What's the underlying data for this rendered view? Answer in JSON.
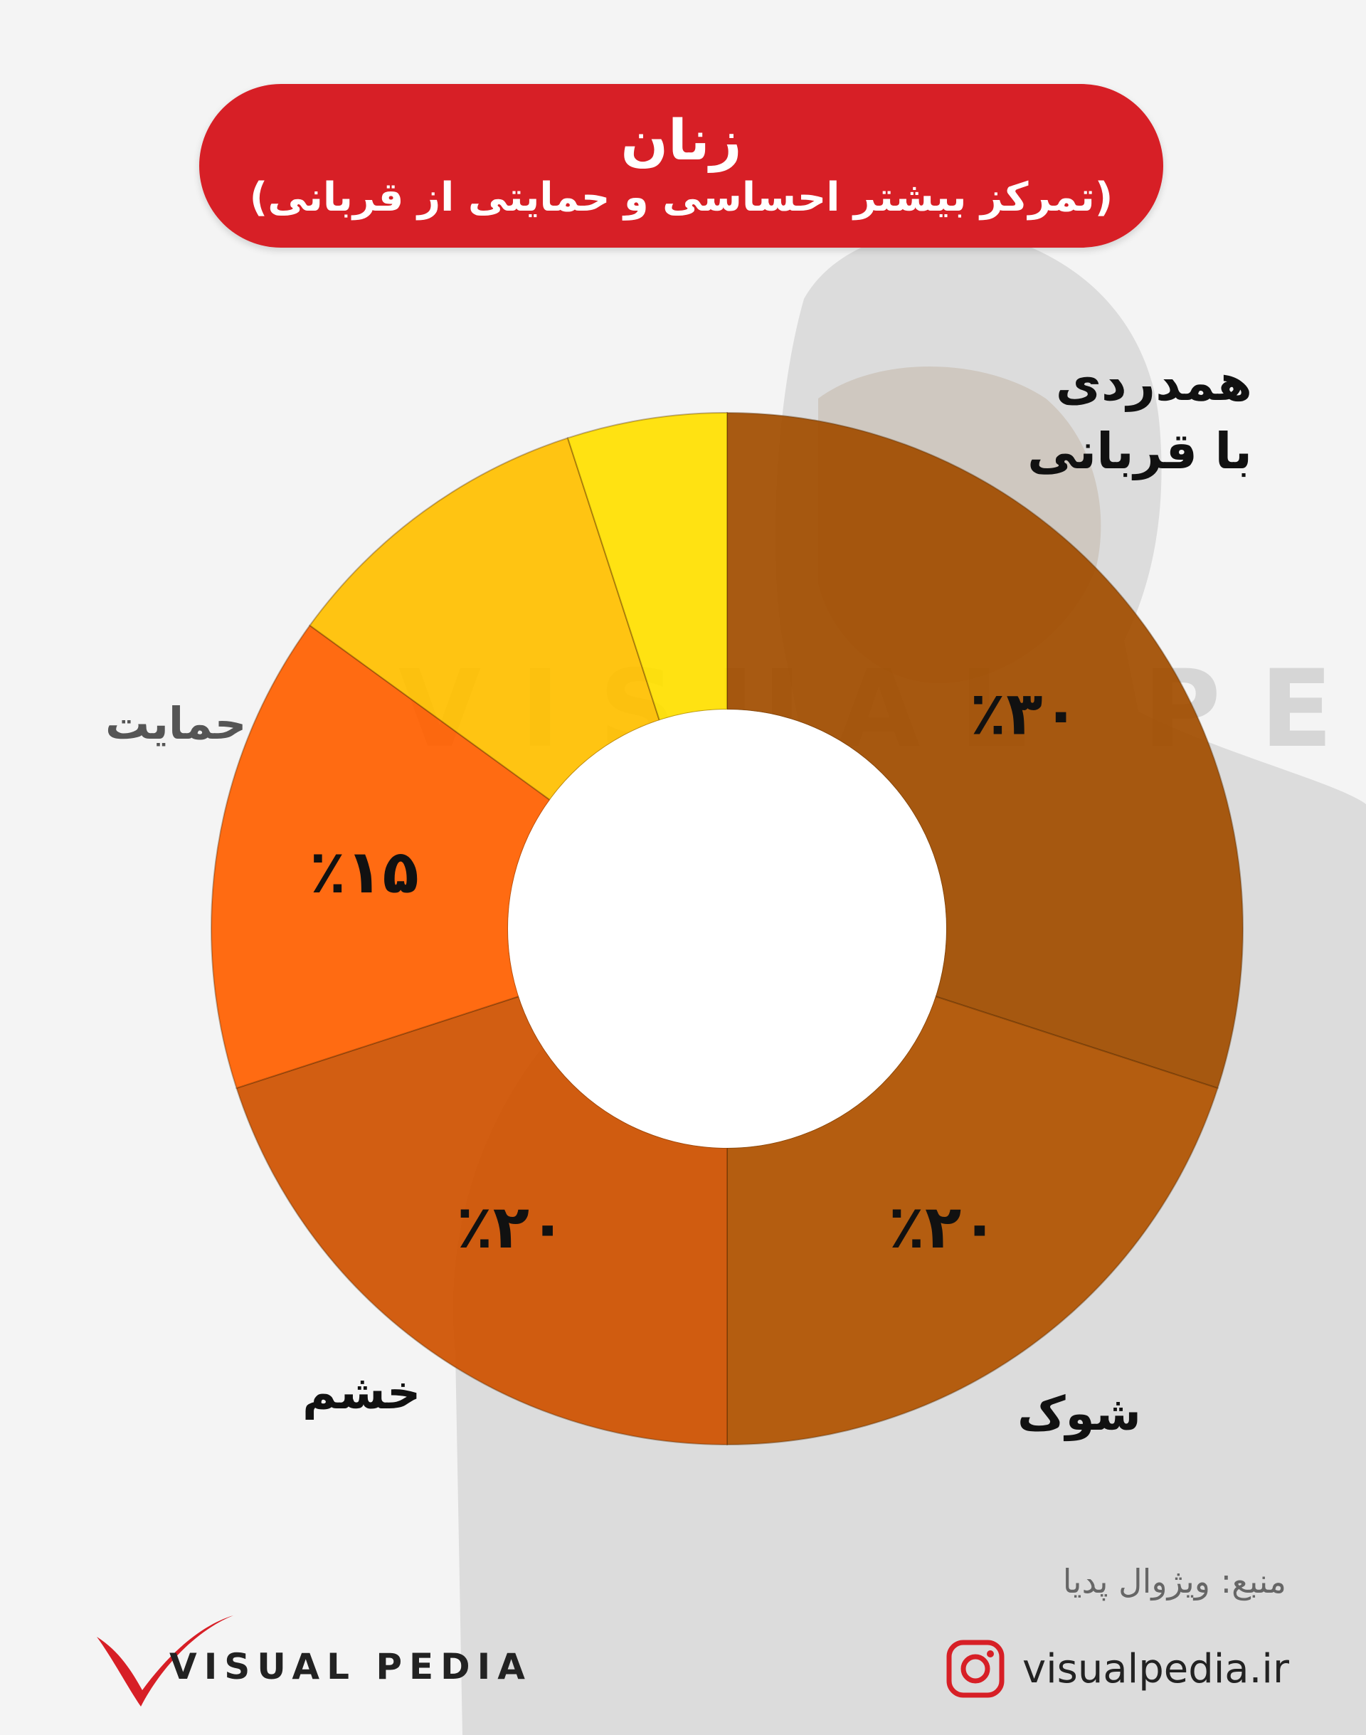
{
  "banner": {
    "title": "زنان",
    "subtitle": "(تمرکز بیشتر احساسی و حمایتی از قربانی)"
  },
  "chart_data": {
    "type": "pie",
    "subtype": "donut",
    "segments": [
      {
        "name": "همدردی با قربانی",
        "name_line1": "همدردی",
        "name_line2": "با قربانی",
        "value": 30,
        "label": "٪۳۰",
        "color": "#a14d00"
      },
      {
        "name": "شوک",
        "value": 20,
        "label": "٪۲۰",
        "color": "#b05300"
      },
      {
        "name": "خشم",
        "value": 20,
        "label": "٪۲۰",
        "color": "#cf5200"
      },
      {
        "name": "حمایت",
        "value": 15,
        "label": "٪۱۵",
        "color": "#ff6000"
      },
      {
        "name": "",
        "value": 10,
        "label": "",
        "color": "#ffc000"
      },
      {
        "name": "",
        "value": 5,
        "label": "",
        "color": "#ffe000"
      }
    ]
  },
  "footer": {
    "source": "منبع: ویژوال پدیا",
    "instagram": "visualpedia.ir",
    "logo_text": "VISUAL PEDIA",
    "watermark": "VISUAL PEDIA"
  },
  "colors": {
    "banner": "#d71f26",
    "logo_check": "#d71f26"
  },
  "icons": {
    "instagram": "instagram-icon",
    "logo": "checkmark-logo-icon"
  }
}
